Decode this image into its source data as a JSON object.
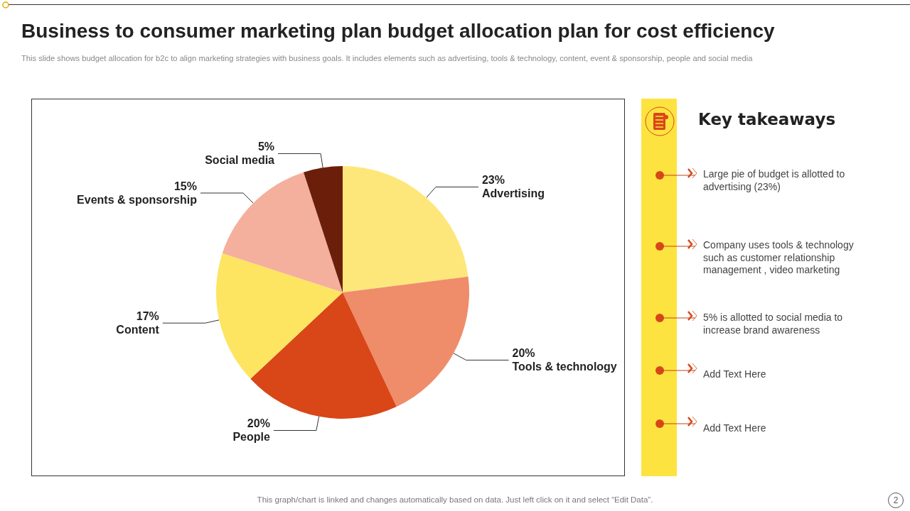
{
  "chart_data": [
    {
      "type": "pie",
      "title": "Business to consumer marketing plan budget allocation plan for cost efficiency",
      "subtitle": "This slide shows budget allocation for b2c to  align marketing strategies with business goals. It includes elements such as advertising, tools & technology, content, event & sponsorship, people and social media",
      "categories": [
        "Advertising",
        "Tools & technology",
        "People",
        "Content",
        "Events & sponsorship",
        "Social media"
      ],
      "values": [
        23,
        20,
        20,
        17,
        15,
        5
      ],
      "value_labels": [
        "23%",
        "20%",
        "20%",
        "17%",
        "15%",
        "5%"
      ],
      "colors": [
        "#fee77a",
        "#ef8c6a",
        "#d94618",
        "#fee561",
        "#f4b09c",
        "#6b1f0a"
      ],
      "annotations": [
        "This graph/chart is linked and changes automatically based on data. Just left click on it and select “Edit Data”.",
        "2"
      ]
    },
    {
      "type": "other",
      "title": "Key takeaways",
      "annotations": [
        "Large pie of budget is allotted to advertising (23%)",
        "Company uses tools & technology such as customer relationship management , video marketing",
        "5% is allotted to social media to increase brand awareness",
        "Add Text Here",
        "Add Text Here"
      ]
    }
  ]
}
